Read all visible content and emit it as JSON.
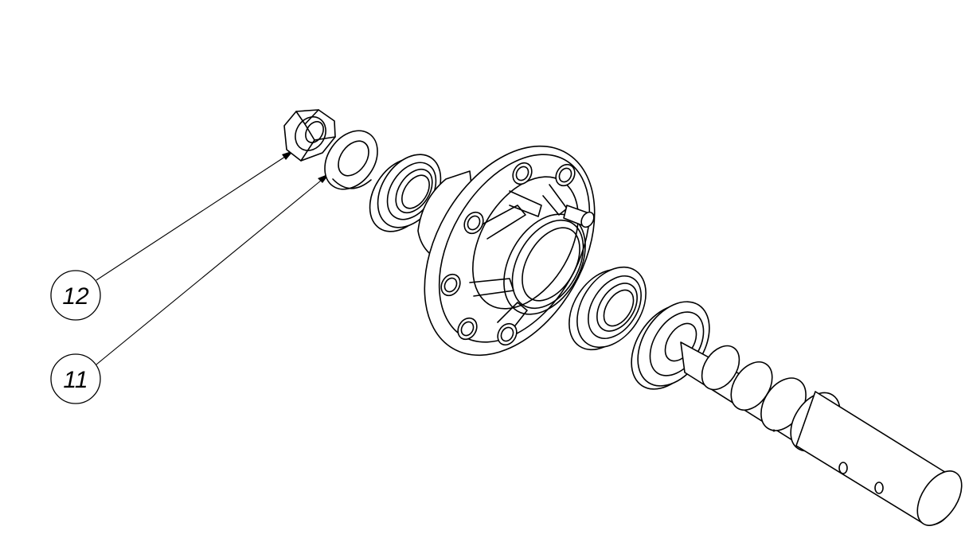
{
  "callouts": [
    {
      "id": "12",
      "label": "12"
    },
    {
      "id": "11",
      "label": "11"
    }
  ],
  "colors": {
    "line": "#000000",
    "background": "#ffffff"
  }
}
